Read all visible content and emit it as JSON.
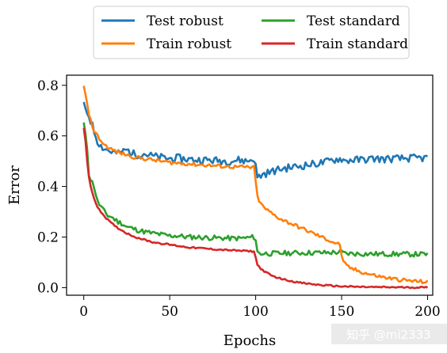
{
  "chart_data": {
    "type": "line",
    "xlabel": "Epochs",
    "ylabel": "Error",
    "xlim": [
      -10,
      203
    ],
    "ylim": [
      -0.03,
      0.84
    ],
    "xticks": [
      0,
      50,
      100,
      150,
      200
    ],
    "xtick_labels": [
      "0",
      "50",
      "100",
      "150",
      "200"
    ],
    "yticks": [
      0.0,
      0.2,
      0.4,
      0.6,
      0.8
    ],
    "ytick_labels": [
      "0.0",
      "0.2",
      "0.4",
      "0.6",
      "0.8"
    ],
    "grid": false,
    "legend_placement": "top (outside plot), 2 columns",
    "series": [
      {
        "name": "Test robust",
        "color": "#1f77b4",
        "points": [
          [
            0,
            0.72
          ],
          [
            3,
            0.68
          ],
          [
            6,
            0.62
          ],
          [
            8,
            0.58
          ],
          [
            10,
            0.56
          ],
          [
            12,
            0.55
          ],
          [
            15,
            0.54
          ],
          [
            20,
            0.53
          ],
          [
            25,
            0.545
          ],
          [
            30,
            0.525
          ],
          [
            35,
            0.53
          ],
          [
            40,
            0.52
          ],
          [
            45,
            0.515
          ],
          [
            50,
            0.51
          ],
          [
            55,
            0.512
          ],
          [
            60,
            0.508
          ],
          [
            65,
            0.505
          ],
          [
            70,
            0.505
          ],
          [
            75,
            0.503
          ],
          [
            80,
            0.502
          ],
          [
            85,
            0.5
          ],
          [
            90,
            0.505
          ],
          [
            95,
            0.5
          ],
          [
            99,
            0.51
          ],
          [
            100,
            0.48
          ],
          [
            101,
            0.435
          ],
          [
            102,
            0.44
          ],
          [
            105,
            0.45
          ],
          [
            110,
            0.46
          ],
          [
            115,
            0.47
          ],
          [
            120,
            0.475
          ],
          [
            125,
            0.48
          ],
          [
            130,
            0.485
          ],
          [
            135,
            0.49
          ],
          [
            140,
            0.495
          ],
          [
            145,
            0.505
          ],
          [
            150,
            0.51
          ],
          [
            152,
            0.5
          ],
          [
            155,
            0.505
          ],
          [
            160,
            0.505
          ],
          [
            165,
            0.508
          ],
          [
            170,
            0.51
          ],
          [
            175,
            0.508
          ],
          [
            180,
            0.51
          ],
          [
            185,
            0.51
          ],
          [
            190,
            0.512
          ],
          [
            195,
            0.512
          ],
          [
            200,
            0.512
          ]
        ]
      },
      {
        "name": "Train robust",
        "color": "#ff7f0e",
        "points": [
          [
            0,
            0.8
          ],
          [
            2,
            0.72
          ],
          [
            4,
            0.66
          ],
          [
            6,
            0.62
          ],
          [
            8,
            0.6
          ],
          [
            10,
            0.58
          ],
          [
            12,
            0.565
          ],
          [
            15,
            0.55
          ],
          [
            20,
            0.535
          ],
          [
            25,
            0.525
          ],
          [
            30,
            0.515
          ],
          [
            35,
            0.51
          ],
          [
            40,
            0.505
          ],
          [
            45,
            0.5
          ],
          [
            50,
            0.495
          ],
          [
            55,
            0.492
          ],
          [
            60,
            0.49
          ],
          [
            65,
            0.487
          ],
          [
            70,
            0.485
          ],
          [
            75,
            0.482
          ],
          [
            80,
            0.48
          ],
          [
            85,
            0.478
          ],
          [
            90,
            0.477
          ],
          [
            95,
            0.476
          ],
          [
            99,
            0.475
          ],
          [
            100,
            0.42
          ],
          [
            101,
            0.36
          ],
          [
            103,
            0.33
          ],
          [
            106,
            0.31
          ],
          [
            110,
            0.29
          ],
          [
            115,
            0.27
          ],
          [
            120,
            0.255
          ],
          [
            125,
            0.24
          ],
          [
            130,
            0.225
          ],
          [
            135,
            0.21
          ],
          [
            140,
            0.195
          ],
          [
            145,
            0.18
          ],
          [
            149,
            0.17
          ],
          [
            150,
            0.13
          ],
          [
            151,
            0.1
          ],
          [
            153,
            0.085
          ],
          [
            156,
            0.075
          ],
          [
            160,
            0.065
          ],
          [
            165,
            0.055
          ],
          [
            170,
            0.047
          ],
          [
            175,
            0.04
          ],
          [
            180,
            0.035
          ],
          [
            185,
            0.03
          ],
          [
            190,
            0.027
          ],
          [
            195,
            0.024
          ],
          [
            200,
            0.022
          ]
        ]
      },
      {
        "name": "Test standard",
        "color": "#2ca02c",
        "points": [
          [
            0,
            0.65
          ],
          [
            2,
            0.55
          ],
          [
            3,
            0.45
          ],
          [
            4,
            0.43
          ],
          [
            6,
            0.4
          ],
          [
            8,
            0.34
          ],
          [
            10,
            0.32
          ],
          [
            12,
            0.3
          ],
          [
            14,
            0.285
          ],
          [
            16,
            0.28
          ],
          [
            18,
            0.27
          ],
          [
            20,
            0.26
          ],
          [
            22,
            0.255
          ],
          [
            25,
            0.24
          ],
          [
            28,
            0.235
          ],
          [
            30,
            0.23
          ],
          [
            33,
            0.225
          ],
          [
            36,
            0.22
          ],
          [
            40,
            0.215
          ],
          [
            45,
            0.21
          ],
          [
            50,
            0.205
          ],
          [
            55,
            0.205
          ],
          [
            60,
            0.2
          ],
          [
            65,
            0.2
          ],
          [
            70,
            0.198
          ],
          [
            75,
            0.197
          ],
          [
            80,
            0.196
          ],
          [
            85,
            0.195
          ],
          [
            90,
            0.195
          ],
          [
            95,
            0.197
          ],
          [
            99,
            0.2
          ],
          [
            100,
            0.19
          ],
          [
            101,
            0.14
          ],
          [
            103,
            0.135
          ],
          [
            110,
            0.135
          ],
          [
            120,
            0.137
          ],
          [
            130,
            0.138
          ],
          [
            140,
            0.138
          ],
          [
            148,
            0.14
          ],
          [
            150,
            0.14
          ],
          [
            152,
            0.135
          ],
          [
            160,
            0.134
          ],
          [
            170,
            0.133
          ],
          [
            180,
            0.133
          ],
          [
            190,
            0.132
          ],
          [
            200,
            0.132
          ]
        ]
      },
      {
        "name": "Train standard",
        "color": "#d62728",
        "points": [
          [
            0,
            0.63
          ],
          [
            1,
            0.58
          ],
          [
            2,
            0.5
          ],
          [
            3,
            0.44
          ],
          [
            4,
            0.4
          ],
          [
            6,
            0.35
          ],
          [
            8,
            0.32
          ],
          [
            10,
            0.3
          ],
          [
            13,
            0.275
          ],
          [
            16,
            0.255
          ],
          [
            20,
            0.235
          ],
          [
            25,
            0.215
          ],
          [
            30,
            0.2
          ],
          [
            35,
            0.19
          ],
          [
            40,
            0.18
          ],
          [
            45,
            0.175
          ],
          [
            50,
            0.17
          ],
          [
            55,
            0.165
          ],
          [
            60,
            0.16
          ],
          [
            65,
            0.157
          ],
          [
            70,
            0.155
          ],
          [
            75,
            0.152
          ],
          [
            80,
            0.15
          ],
          [
            85,
            0.148
          ],
          [
            90,
            0.146
          ],
          [
            95,
            0.145
          ],
          [
            99,
            0.143
          ],
          [
            100,
            0.12
          ],
          [
            101,
            0.09
          ],
          [
            103,
            0.075
          ],
          [
            106,
            0.06
          ],
          [
            110,
            0.045
          ],
          [
            115,
            0.035
          ],
          [
            120,
            0.027
          ],
          [
            125,
            0.02
          ],
          [
            130,
            0.016
          ],
          [
            135,
            0.012
          ],
          [
            140,
            0.009
          ],
          [
            145,
            0.007
          ],
          [
            150,
            0.005
          ],
          [
            160,
            0.003
          ],
          [
            170,
            0.002
          ],
          [
            180,
            0.0015
          ],
          [
            190,
            0.001
          ],
          [
            200,
            0.001
          ]
        ]
      }
    ],
    "noise": [
      0.03,
      0.015,
      0.02,
      0.006
    ],
    "legend": {
      "rows": [
        [
          "Test robust",
          "Test standard"
        ],
        [
          "Train robust",
          "Train standard"
        ]
      ],
      "colors": [
        [
          "#1f77b4",
          "#2ca02c"
        ],
        [
          "#ff7f0e",
          "#d62728"
        ]
      ]
    }
  },
  "watermark": "知乎 @mi2333"
}
